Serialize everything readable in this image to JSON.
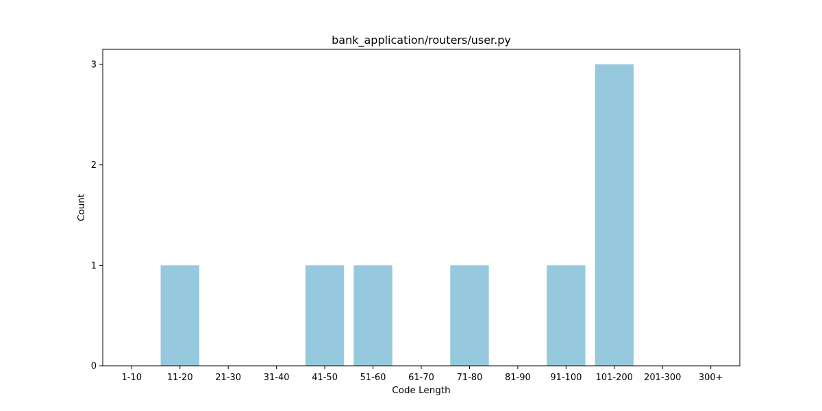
{
  "chart_data": {
    "type": "bar",
    "title": "bank_application/routers/user.py",
    "xlabel": "Code Length",
    "ylabel": "Count",
    "categories": [
      "1-10",
      "11-20",
      "21-30",
      "31-40",
      "41-50",
      "51-60",
      "61-70",
      "71-80",
      "81-90",
      "91-100",
      "101-200",
      "201-300",
      "300+"
    ],
    "values": [
      0,
      1,
      0,
      0,
      1,
      1,
      0,
      1,
      0,
      1,
      3,
      0,
      0
    ],
    "yticks": [
      "0",
      "1",
      "2",
      "3"
    ],
    "ylim": [
      0,
      3.15
    ],
    "grid": false,
    "colors": {
      "bar": "#96c9dd",
      "axis": "#000000"
    }
  }
}
